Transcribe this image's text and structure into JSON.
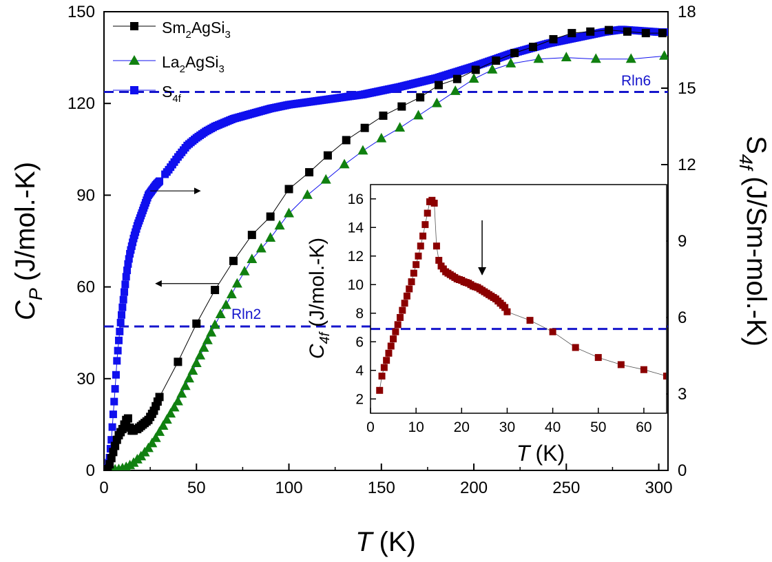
{
  "chart_data": [
    {
      "id": "main",
      "type": "scatter",
      "xlabel": "T",
      "xunit": "(K)",
      "ylabel_base": "C",
      "ylabel_sub": "P",
      "ylabel_unit": "(J/mol.-K)",
      "y2label_base": "S",
      "y2label_sub": "4f",
      "y2label_unit": "(J/Sm-mol.-K)",
      "xlim": [
        0,
        305
      ],
      "ylim": [
        0,
        150
      ],
      "y2lim": [
        0,
        18
      ],
      "xticks": [
        0,
        50,
        100,
        150,
        200,
        250,
        300
      ],
      "yticks": [
        0,
        30,
        60,
        90,
        120,
        150
      ],
      "y2ticks": [
        0,
        3,
        6,
        9,
        12,
        15,
        18
      ],
      "legend": {
        "position": "top-left",
        "entries": [
          {
            "base": "Sm",
            "sub1": "2",
            "mid": "AgSi",
            "sub2": "3",
            "marker": "square",
            "color": "#000000"
          },
          {
            "base": "La",
            "sub1": "2",
            "mid": "AgSi",
            "sub2": "3",
            "marker": "triangle",
            "color": "#108010"
          },
          {
            "base": "S",
            "sub1": "4f",
            "mid": "",
            "sub2": "",
            "marker": "square",
            "color": "#1010ee"
          }
        ]
      },
      "annotations": {
        "rln2": {
          "text": "Rln2",
          "y2": 5.65,
          "color": "#1515cc"
        },
        "rln6": {
          "text": "Rln6",
          "y2": 14.85,
          "color": "#1515cc"
        },
        "arrow_right": {
          "from": [
            25,
            95
          ],
          "to": [
            52,
            95
          ]
        },
        "arrow_left": {
          "from": [
            62,
            62
          ],
          "to": [
            28,
            62
          ]
        }
      },
      "series": [
        {
          "name": "Sm2AgSi3",
          "axis": "left",
          "color": "#000000",
          "marker": "square",
          "x": [
            2,
            3,
            4,
            5,
            6,
            7,
            8,
            9,
            10,
            11,
            12,
            13,
            14,
            15,
            16,
            17,
            18,
            19,
            20,
            21,
            22,
            23,
            24,
            25,
            26,
            27,
            28,
            29,
            30,
            40,
            50,
            60,
            70,
            80,
            90,
            100,
            111,
            121,
            131,
            141,
            151,
            161,
            171,
            181,
            191,
            201,
            212,
            222,
            232,
            243,
            253,
            263,
            273,
            283,
            293,
            302
          ],
          "y": [
            0.5,
            2,
            4,
            6,
            8,
            10,
            11.5,
            12.5,
            13.5,
            15,
            16.5,
            17,
            14,
            13,
            13,
            13.5,
            13.5,
            14,
            14.5,
            15,
            15.5,
            16,
            16.5,
            17.5,
            18.5,
            19.5,
            21,
            22.5,
            24,
            35.5,
            48,
            59,
            68.5,
            77,
            83,
            92,
            97.5,
            103,
            108,
            112,
            116,
            119,
            122,
            126,
            128,
            131,
            134,
            136.5,
            138.5,
            141,
            143,
            143.5,
            144,
            143.5,
            143,
            143
          ]
        },
        {
          "name": "La2AgSi3",
          "axis": "left",
          "color": "#108010",
          "marker": "triangle",
          "x": [
            2,
            4,
            6,
            8,
            10,
            12,
            14,
            16,
            18,
            20,
            22,
            24,
            26,
            28,
            30,
            32,
            34,
            36,
            38,
            40,
            42,
            44,
            46,
            48,
            50,
            52,
            54,
            56,
            58,
            60,
            63,
            66,
            69,
            72,
            76,
            80,
            85,
            90,
            95,
            100,
            110,
            120,
            130,
            140,
            150,
            160,
            170,
            180,
            190,
            200,
            210,
            220,
            235,
            250,
            266,
            285,
            303
          ],
          "y": [
            0,
            0.1,
            0.2,
            0.3,
            0.6,
            1,
            1.6,
            2.4,
            3.5,
            4.5,
            5.8,
            7.2,
            8.8,
            10.5,
            12.5,
            14.5,
            16.5,
            18.5,
            20.5,
            22.5,
            25,
            27.5,
            30,
            32.5,
            35,
            37.5,
            40,
            42.5,
            45,
            47.5,
            51,
            54,
            57.5,
            61,
            65,
            69,
            72.5,
            76,
            80,
            84,
            90,
            95,
            100,
            104.5,
            108.5,
            112,
            116,
            120,
            124,
            128,
            131,
            133,
            134.5,
            135,
            134.5,
            134.5,
            135.5
          ]
        },
        {
          "name": "S4f",
          "axis": "right",
          "color": "#1010ee",
          "marker": "square",
          "curve": {
            "x_start": 2,
            "x_end": 303,
            "x_step": 1,
            "x_step_low": 0.5,
            "x_low_until": 30,
            "gap": [
              30,
              33
            ],
            "knots_x": [
              2,
              3,
              4,
              5,
              6,
              7,
              8,
              9,
              10,
              11,
              12,
              13,
              14,
              15,
              16,
              18,
              20,
              22,
              24,
              26,
              28,
              30,
              35,
              40,
              45,
              50,
              55,
              60,
              70,
              80,
              90,
              100,
              120,
              140,
              160,
              180,
              200,
              220,
              240,
              260,
              270,
              280,
              290,
              300,
              303
            ],
            "knots_y": [
              0.1,
              0.5,
              1.2,
              2.2,
              3.2,
              4.3,
              5.1,
              5.8,
              6.4,
              7.0,
              7.6,
              8.1,
              8.5,
              8.8,
              9.1,
              9.6,
              10.0,
              10.4,
              10.8,
              11.0,
              11.2,
              11.35,
              11.8,
              12.3,
              12.75,
              13.05,
              13.3,
              13.5,
              13.8,
              14.0,
              14.2,
              14.35,
              14.55,
              14.75,
              15.05,
              15.4,
              15.85,
              16.35,
              16.75,
              17.05,
              17.2,
              17.3,
              17.25,
              17.2,
              17.2
            ]
          }
        }
      ]
    },
    {
      "id": "inset",
      "type": "scatter",
      "xlabel": "T",
      "xunit": "(K)",
      "ylabel_base": "C",
      "ylabel_sub": "4f",
      "ylabel_unit": "(J/mol.-K)",
      "xlim": [
        0,
        65
      ],
      "ylim": [
        1,
        17
      ],
      "xticks": [
        0,
        10,
        20,
        30,
        40,
        50,
        60
      ],
      "yticks": [
        2,
        4,
        6,
        8,
        10,
        12,
        14,
        16
      ],
      "hline": {
        "y": 6.9,
        "color": "#1515cc"
      },
      "arrow": {
        "x": 24.5,
        "y_from": 14.5,
        "y_to": 10.7
      },
      "series": [
        {
          "name": "C4f",
          "color": "#8b0000",
          "marker": "square",
          "x": [
            2,
            2.5,
            3,
            3.5,
            4,
            4.5,
            5,
            5.5,
            6,
            6.5,
            7,
            7.5,
            8,
            8.5,
            9,
            9.5,
            10,
            10.5,
            11,
            11.5,
            12,
            12.5,
            13,
            13.5,
            14,
            14.5,
            15,
            15.5,
            16,
            16.5,
            17,
            17.5,
            18,
            18.5,
            19,
            19.5,
            20,
            20.5,
            21,
            21.5,
            22,
            22.5,
            23,
            23.5,
            24,
            24.5,
            25,
            25.5,
            26,
            26.5,
            27,
            27.5,
            28,
            28.5,
            29,
            29.5,
            30,
            35,
            40,
            45,
            50,
            55,
            60,
            65
          ],
          "y": [
            2.6,
            3.6,
            4.2,
            4.7,
            5.2,
            5.7,
            6.2,
            6.7,
            7.2,
            7.7,
            8.2,
            8.7,
            9.2,
            9.7,
            10.2,
            10.8,
            11.4,
            12.0,
            12.7,
            13.4,
            14.2,
            15.0,
            15.8,
            15.9,
            15.7,
            12.7,
            11.7,
            11.3,
            11.1,
            10.9,
            10.8,
            10.7,
            10.6,
            10.5,
            10.4,
            10.35,
            10.3,
            10.2,
            10.15,
            10.1,
            10.0,
            9.9,
            9.85,
            9.8,
            9.7,
            9.6,
            9.5,
            9.4,
            9.3,
            9.2,
            9.1,
            9.0,
            8.85,
            8.7,
            8.55,
            8.4,
            8.1,
            7.5,
            6.7,
            5.6,
            4.9,
            4.4,
            4.05,
            3.6
          ]
        }
      ]
    }
  ]
}
